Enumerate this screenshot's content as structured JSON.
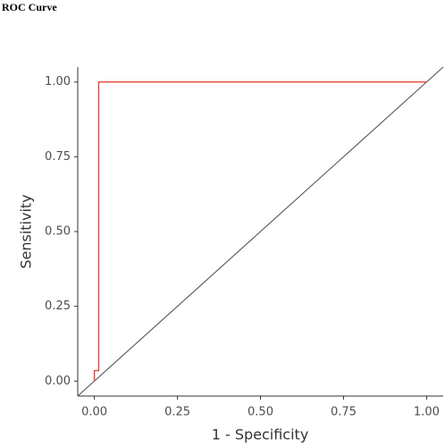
{
  "chart_data": {
    "type": "line",
    "title": "ROC Curve",
    "x_label": "1 - Specificity",
    "y_label": "Sensitivity",
    "series": [
      {
        "color": "#e8453c",
        "x": [
          0,
          0,
          0.013,
          0.013,
          1
        ],
        "values": [
          0,
          0.035,
          0.035,
          1,
          1
        ]
      }
    ],
    "abline": {
      "intercept": 0,
      "slope": 1,
      "color": "#555555"
    },
    "xlim": [
      -0.05,
      1.05
    ],
    "ylim": [
      -0.05,
      1.05
    ],
    "xticks": [
      {
        "value": 0,
        "label": "0.00"
      },
      {
        "value": 0.25,
        "label": "0.25"
      },
      {
        "value": 0.5,
        "label": "0.50"
      },
      {
        "value": 0.75,
        "label": "0.75"
      },
      {
        "value": 1,
        "label": "1.00"
      }
    ],
    "yticks": [
      {
        "value": 0,
        "label": "0.00"
      },
      {
        "value": 0.25,
        "label": "0.25"
      },
      {
        "value": 0.5,
        "label": "0.50"
      },
      {
        "value": 0.75,
        "label": "0.75"
      },
      {
        "value": 1,
        "label": "1.00"
      }
    ],
    "grid": false
  }
}
